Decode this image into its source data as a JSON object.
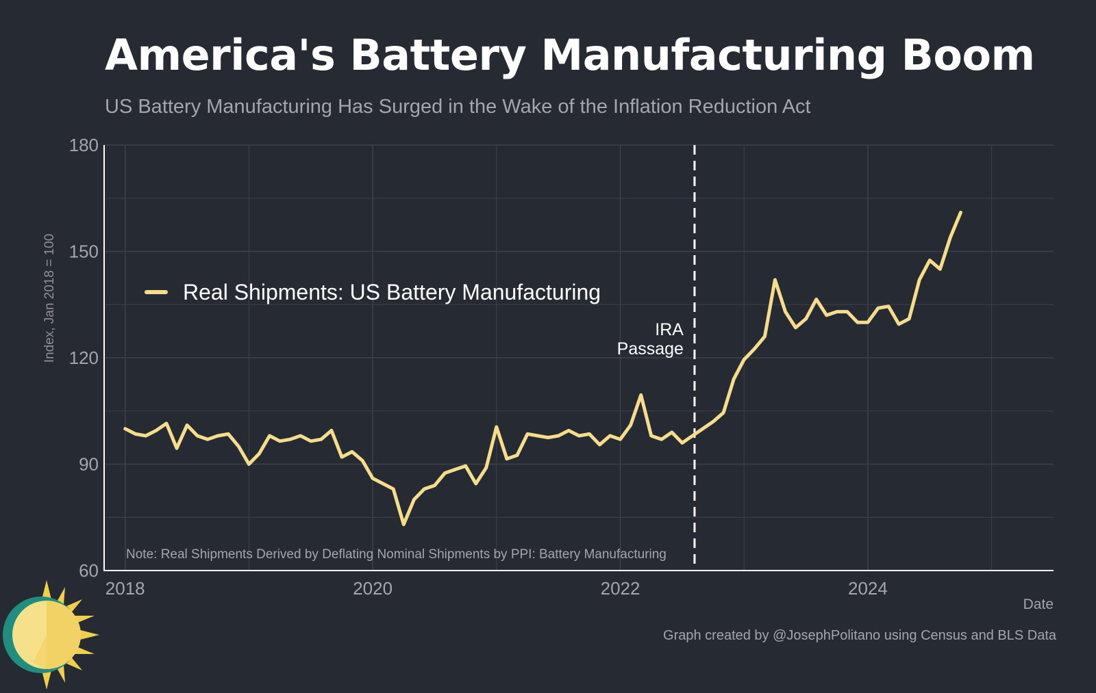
{
  "header": {
    "title": "America's Battery Manufacturing Boom",
    "subtitle": "US Battery Manufacturing Has Surged in the Wake of the Inflation Reduction Act"
  },
  "footer": {
    "caption": "Graph created by @JosephPolitano using Census and BLS Data",
    "logo_icon": "sun-logo-icon"
  },
  "colors": {
    "background": "#262a33",
    "series": "#f7dc8a",
    "grid": "#3d414b",
    "axis_text": "#a3a6ad",
    "annotation": "#ffffff"
  },
  "chart_data": {
    "type": "line",
    "title": "America's Battery Manufacturing Boom",
    "subtitle": "US Battery Manufacturing Has Surged in the Wake of the Inflation Reduction Act",
    "xlabel": "Date",
    "ylabel": "Index, Jan 2018 = 100",
    "xlim": [
      2017.83,
      2025.5
    ],
    "ylim": [
      60,
      180
    ],
    "x_ticks": [
      2018,
      2020,
      2022,
      2024
    ],
    "y_ticks": [
      60,
      90,
      120,
      150,
      180
    ],
    "grid": true,
    "legend": {
      "position": "left",
      "entries": [
        "Real Shipments: US Battery Manufacturing"
      ]
    },
    "annotations": {
      "event_line": {
        "x": 2022.6,
        "label_line1": "IRA",
        "label_line2": "Passage",
        "style": "dashed"
      },
      "note": "Note: Real Shipments Derived by Deflating Nominal Shipments by PPI: Battery Manufacturing"
    },
    "series": [
      {
        "name": "Real Shipments: US Battery Manufacturing",
        "start": "2018-01",
        "frequency": "monthly",
        "values": [
          100,
          98.5,
          98,
          99.5,
          101.5,
          94.5,
          101,
          98,
          97,
          98,
          98.5,
          95,
          90,
          93,
          98,
          96.5,
          97,
          98,
          96.5,
          97,
          99.5,
          92,
          93.5,
          91,
          86,
          84.5,
          83,
          73,
          80,
          83,
          84,
          87.5,
          88.5,
          89.5,
          84.5,
          89,
          100.5,
          91.5,
          92.5,
          98.5,
          98,
          97.5,
          98,
          99.5,
          98,
          98.5,
          95.5,
          98,
          97,
          101,
          109.5,
          98,
          97,
          99,
          96,
          98,
          100,
          102,
          104.5,
          114,
          119.5,
          122.5,
          126,
          142,
          133,
          128.5,
          131,
          136.5,
          132,
          133,
          133,
          130,
          130,
          134,
          134.5,
          129.5,
          131,
          142,
          147.5,
          145,
          154,
          161
        ]
      }
    ]
  }
}
